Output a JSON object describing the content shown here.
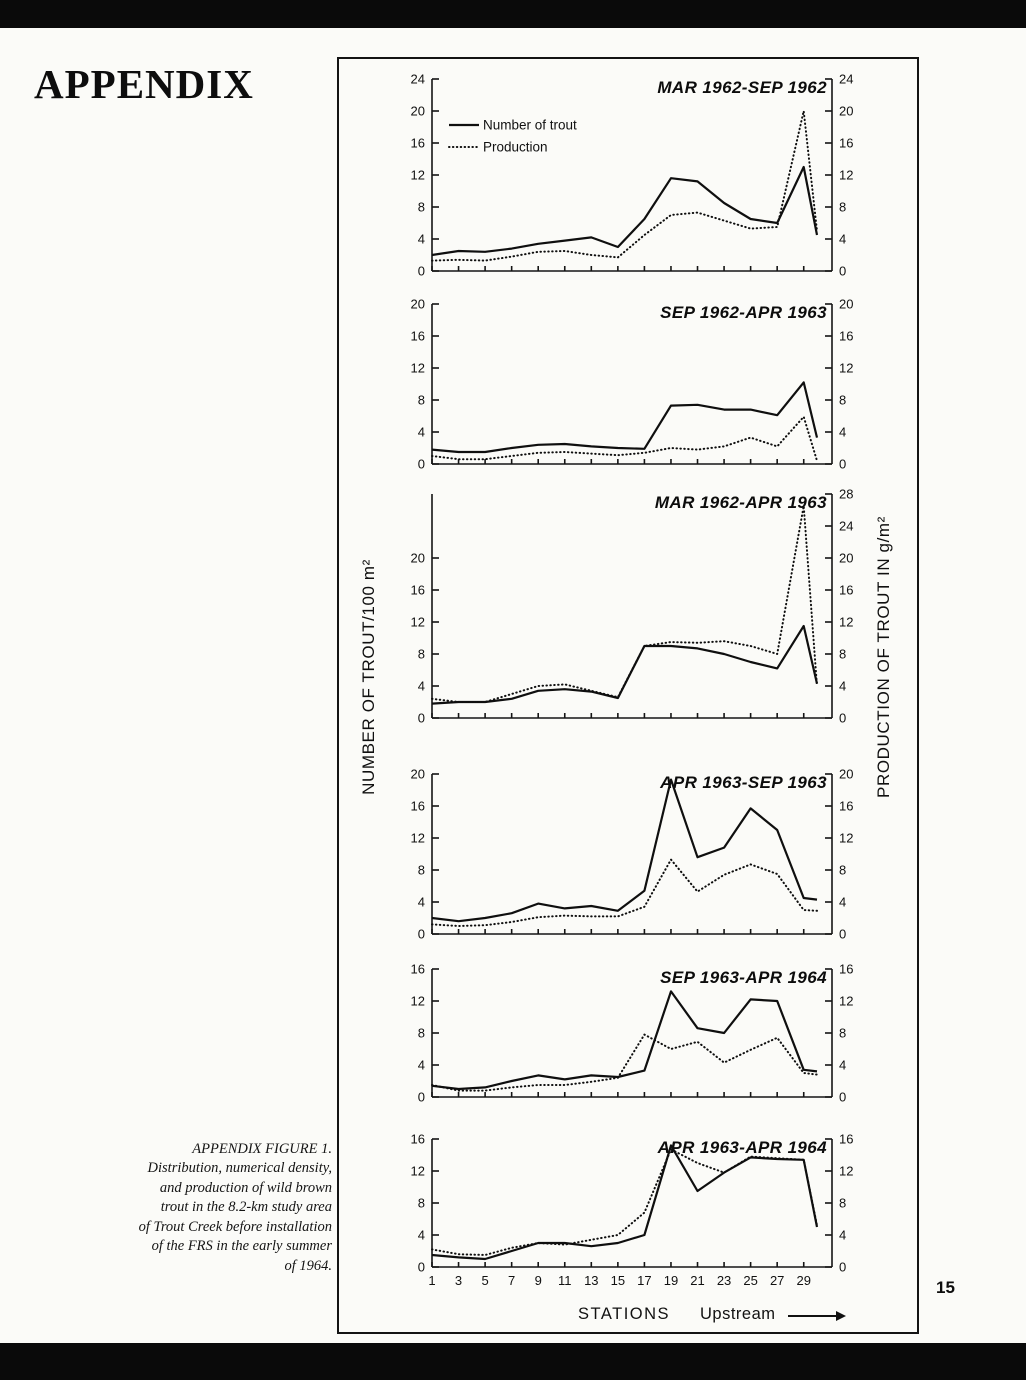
{
  "page": {
    "heading": "APPENDIX",
    "page_number": "15",
    "caption": {
      "lines": [
        "APPENDIX FIGURE 1.",
        "Distribution, numerical density,",
        "and production of wild brown",
        "trout in the 8.2-km study area",
        "of Trout Creek before installation",
        "of the FRS in the early summer",
        "of 1964."
      ]
    }
  },
  "figure": {
    "left_axis_label": "NUMBER OF TROUT/100 m²",
    "right_axis_label": "PRODUCTION OF TROUT IN g/m²",
    "x_axis": {
      "tick_labels": [
        "1",
        "3",
        "5",
        "7",
        "9",
        "11",
        "13",
        "15",
        "17",
        "19",
        "21",
        "23",
        "25",
        "27",
        "29"
      ],
      "label": "STATIONS",
      "direction_label": "Upstream"
    },
    "legend": [
      {
        "style": "solid",
        "label": "Number of trout"
      },
      {
        "style": "dotted",
        "label": "Production"
      }
    ]
  },
  "chart_data": [
    {
      "type": "line",
      "title": "MAR 1962-SEP 1962",
      "xlabel": "STATIONS",
      "ylabel_left": "NUMBER OF TROUT/100 m²",
      "ylabel_right": "PRODUCTION OF TROUT IN g/m²",
      "ylim": [
        0,
        24
      ],
      "left_ticks": [
        0,
        4,
        8,
        12,
        16,
        20,
        24
      ],
      "right_ticks": [
        0,
        4,
        8,
        12,
        16,
        20,
        24
      ],
      "x": [
        1,
        3,
        5,
        7,
        9,
        11,
        13,
        15,
        17,
        19,
        21,
        23,
        25,
        27,
        29,
        30
      ],
      "series": [
        {
          "name": "Number of trout",
          "style": "solid",
          "values": [
            2.0,
            2.5,
            2.4,
            2.8,
            3.4,
            3.8,
            4.2,
            3.0,
            6.5,
            11.6,
            11.2,
            8.5,
            6.5,
            6.0,
            13.0,
            4.5
          ]
        },
        {
          "name": "Production",
          "style": "dotted",
          "values": [
            1.3,
            1.4,
            1.3,
            1.8,
            2.4,
            2.5,
            2.0,
            1.7,
            4.5,
            7.0,
            7.3,
            6.3,
            5.3,
            5.5,
            20.0,
            5.0
          ]
        }
      ]
    },
    {
      "type": "line",
      "title": "SEP 1962-APR 1963",
      "ylim": [
        0,
        20
      ],
      "left_ticks": [
        0,
        4,
        8,
        12,
        16,
        20
      ],
      "right_ticks": [
        0,
        4,
        8,
        12,
        16,
        20
      ],
      "x": [
        1,
        3,
        5,
        7,
        9,
        11,
        13,
        15,
        17,
        19,
        21,
        23,
        25,
        27,
        29,
        30
      ],
      "series": [
        {
          "name": "Number of trout",
          "style": "solid",
          "values": [
            1.8,
            1.5,
            1.5,
            2.0,
            2.4,
            2.5,
            2.2,
            2.0,
            1.9,
            7.3,
            7.4,
            6.8,
            6.8,
            6.1,
            10.2,
            3.3
          ]
        },
        {
          "name": "Production",
          "style": "dotted",
          "values": [
            1.0,
            0.6,
            0.6,
            1.0,
            1.4,
            1.5,
            1.3,
            1.1,
            1.4,
            2.0,
            1.8,
            2.2,
            3.3,
            2.2,
            5.9,
            0.4
          ]
        }
      ]
    },
    {
      "type": "line",
      "title": "MAR 1962-APR 1963",
      "ylim": [
        0,
        28
      ],
      "left_ticks": [
        0,
        4,
        8,
        12,
        16,
        20
      ],
      "right_ticks": [
        0,
        4,
        8,
        12,
        16,
        20,
        24,
        28
      ],
      "x": [
        1,
        3,
        5,
        7,
        9,
        11,
        13,
        15,
        17,
        19,
        21,
        23,
        25,
        27,
        29,
        30
      ],
      "series": [
        {
          "name": "Number of trout",
          "style": "solid",
          "values": [
            1.8,
            2.0,
            2.0,
            2.4,
            3.4,
            3.6,
            3.3,
            2.5,
            9.0,
            9.0,
            8.7,
            8.0,
            7.0,
            6.2,
            11.5,
            4.3
          ]
        },
        {
          "name": "Production",
          "style": "dotted",
          "values": [
            2.4,
            2.0,
            2.0,
            3.0,
            4.0,
            4.2,
            3.4,
            2.6,
            9.0,
            9.5,
            9.4,
            9.6,
            9.0,
            8.0,
            26.5,
            4.0
          ]
        }
      ]
    },
    {
      "type": "line",
      "title": "APR 1963-SEP 1963",
      "ylim": [
        0,
        20
      ],
      "left_ticks": [
        0,
        4,
        8,
        12,
        16,
        20
      ],
      "right_ticks": [
        0,
        4,
        8,
        12,
        16,
        20
      ],
      "x": [
        1,
        3,
        5,
        7,
        9,
        11,
        13,
        15,
        17,
        19,
        21,
        23,
        25,
        27,
        29,
        30
      ],
      "series": [
        {
          "name": "Number of trout",
          "style": "solid",
          "values": [
            2.0,
            1.6,
            2.0,
            2.6,
            3.8,
            3.2,
            3.5,
            2.9,
            5.4,
            19.3,
            9.6,
            10.8,
            15.7,
            13.0,
            4.5,
            4.3
          ]
        },
        {
          "name": "Production",
          "style": "dotted",
          "values": [
            1.2,
            1.0,
            1.1,
            1.5,
            2.1,
            2.3,
            2.2,
            2.2,
            3.4,
            9.3,
            5.3,
            7.4,
            8.7,
            7.5,
            3.0,
            2.9
          ]
        }
      ]
    },
    {
      "type": "line",
      "title": "SEP 1963-APR 1964",
      "ylim": [
        0,
        16
      ],
      "left_ticks": [
        0,
        4,
        8,
        12,
        16
      ],
      "right_ticks": [
        0,
        4,
        8,
        12,
        16
      ],
      "x": [
        1,
        3,
        5,
        7,
        9,
        11,
        13,
        15,
        17,
        19,
        21,
        23,
        25,
        27,
        29,
        30
      ],
      "series": [
        {
          "name": "Number of trout",
          "style": "solid",
          "values": [
            1.4,
            1.0,
            1.2,
            2.0,
            2.7,
            2.2,
            2.7,
            2.5,
            3.3,
            13.2,
            8.6,
            8.0,
            12.2,
            12.0,
            3.4,
            3.2
          ]
        },
        {
          "name": "Production",
          "style": "dotted",
          "values": [
            1.5,
            0.8,
            0.8,
            1.2,
            1.5,
            1.5,
            1.9,
            2.4,
            7.8,
            6.0,
            6.9,
            4.3,
            5.9,
            7.4,
            3.0,
            2.8
          ]
        }
      ]
    },
    {
      "type": "line",
      "title": "APR 1963-APR 1964",
      "ylim": [
        0,
        16
      ],
      "left_ticks": [
        0,
        4,
        8,
        12,
        16
      ],
      "right_ticks": [
        0,
        4,
        8,
        12,
        16
      ],
      "x": [
        1,
        3,
        5,
        7,
        9,
        11,
        13,
        15,
        17,
        19,
        21,
        23,
        25,
        27,
        29,
        30
      ],
      "series": [
        {
          "name": "Number of trout",
          "style": "solid",
          "values": [
            1.5,
            1.2,
            1.0,
            2.0,
            3.0,
            3.0,
            2.6,
            3.0,
            4.0,
            15.2,
            9.5,
            11.8,
            13.7,
            13.5,
            13.4,
            5.0
          ]
        },
        {
          "name": "Production",
          "style": "dotted",
          "values": [
            2.2,
            1.6,
            1.5,
            2.4,
            3.0,
            2.8,
            3.4,
            4.0,
            6.8,
            14.7,
            13.0,
            11.8,
            13.8,
            13.6,
            13.4,
            5.2
          ]
        }
      ]
    }
  ]
}
